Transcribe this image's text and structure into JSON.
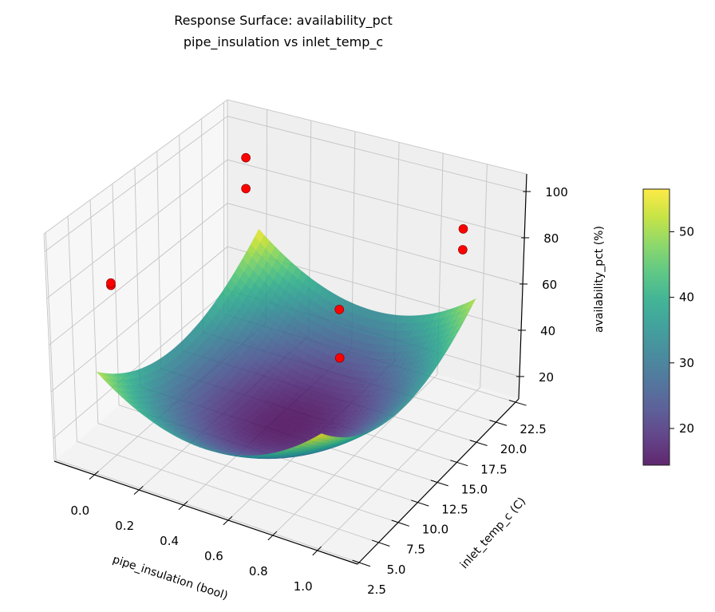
{
  "chart_data": {
    "type": "surface3d",
    "title_lines": [
      "Response Surface: availability_pct",
      "pipe_insulation vs inlet_temp_c"
    ],
    "xlabel": "pipe_insulation (bool)",
    "ylabel": "inlet_temp_c (C)",
    "zlabel": "availability_pct (%)",
    "xlim": [
      -0.18,
      1.18
    ],
    "ylim": [
      2.3,
      22.9
    ],
    "zlim": [
      10.3,
      107.6
    ],
    "xticks": [
      "0.0",
      "0.2",
      "0.4",
      "0.6",
      "0.8",
      "1.0"
    ],
    "yticks": [
      "2.5",
      "5.0",
      "7.5",
      "10.0",
      "12.5",
      "15.0",
      "17.5",
      "20.0",
      "22.5"
    ],
    "zticks": [
      "20",
      "40",
      "60",
      "80",
      "100"
    ],
    "grid": true,
    "surface": {
      "x_range": [
        0,
        1
      ],
      "y_range": [
        3,
        22
      ],
      "quadratic_fit": {
        "intercept": 14.5,
        "x_sq": 20,
        "y_sq": 19.5,
        "xy": -2,
        "x_center": 0.5,
        "x_half_span": 0.5,
        "y_center": 12.5,
        "y_half_span": 9.5
      },
      "colormap": "viridis",
      "alpha": 0.85
    },
    "scatter": {
      "color": "#ff0000",
      "edge_color": "#7a0000",
      "points": [
        {
          "x": 0,
          "y": 20.5,
          "z": 93
        },
        {
          "x": 0,
          "y": 20.5,
          "z": 79
        },
        {
          "x": 0,
          "y": 5.0,
          "z": 84
        },
        {
          "x": 0,
          "y": 5.0,
          "z": 83
        },
        {
          "x": 1,
          "y": 20.2,
          "z": 88
        },
        {
          "x": 1,
          "y": 20.2,
          "z": 79
        },
        {
          "x": 1,
          "y": 5.3,
          "z": 100
        },
        {
          "x": 1,
          "y": 5.3,
          "z": 80
        }
      ]
    },
    "colorbar": {
      "range": [
        14.4,
        56.5
      ],
      "ticks": [
        "20",
        "30",
        "40",
        "50"
      ]
    }
  }
}
